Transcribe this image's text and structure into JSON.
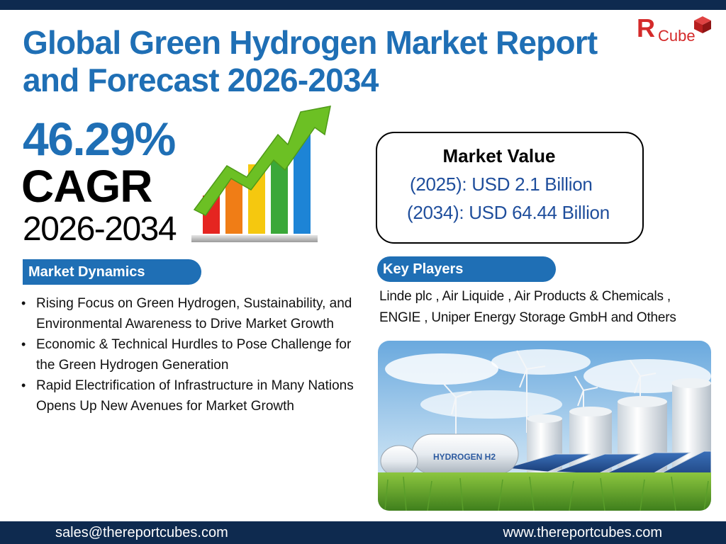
{
  "title": {
    "line1": "Global Green Hydrogen Market Report",
    "line2": "and Forecast 2026-2034"
  },
  "logo": {
    "text": "Cube",
    "mark": "Я"
  },
  "cagr": {
    "percent": "46.29%",
    "label": "CAGR",
    "years": "2026-2034"
  },
  "growth_icon": {
    "bar_colors": [
      "#e52521",
      "#f07d16",
      "#f5c80f",
      "#3aa839",
      "#1d84d6"
    ],
    "arrow_color": "#6cc024"
  },
  "market_value": {
    "title": "Market Value",
    "line1": "(2025): USD 2.1 Billion",
    "line2": "(2034): USD 64.44 Billion"
  },
  "market_dynamics": {
    "heading": "Market Dynamics",
    "items": [
      "Rising Focus on Green Hydrogen, Sustainability, and Environmental Awareness to Drive Market Growth",
      "Economic & Technical Hurdles to Pose Challenge for the Green Hydrogen Generation",
      "Rapid Electrification of Infrastructure in Many Nations Opens Up New Avenues for Market Growth"
    ]
  },
  "key_players": {
    "heading": "Key Players",
    "text": "Linde plc , Air Liquide , Air Products & Chemicals , ENGIE , Uniper Energy Storage GmbH and Others"
  },
  "photo": {
    "tank_label": "HYDROGEN H2"
  },
  "footer": {
    "email": "sales@thereportcubes.com",
    "website": "www.thereportcubes.com"
  },
  "colors": {
    "primary_blue": "#1f6fb5",
    "navy": "#0e2a4f",
    "logo_red": "#d42a2a"
  }
}
